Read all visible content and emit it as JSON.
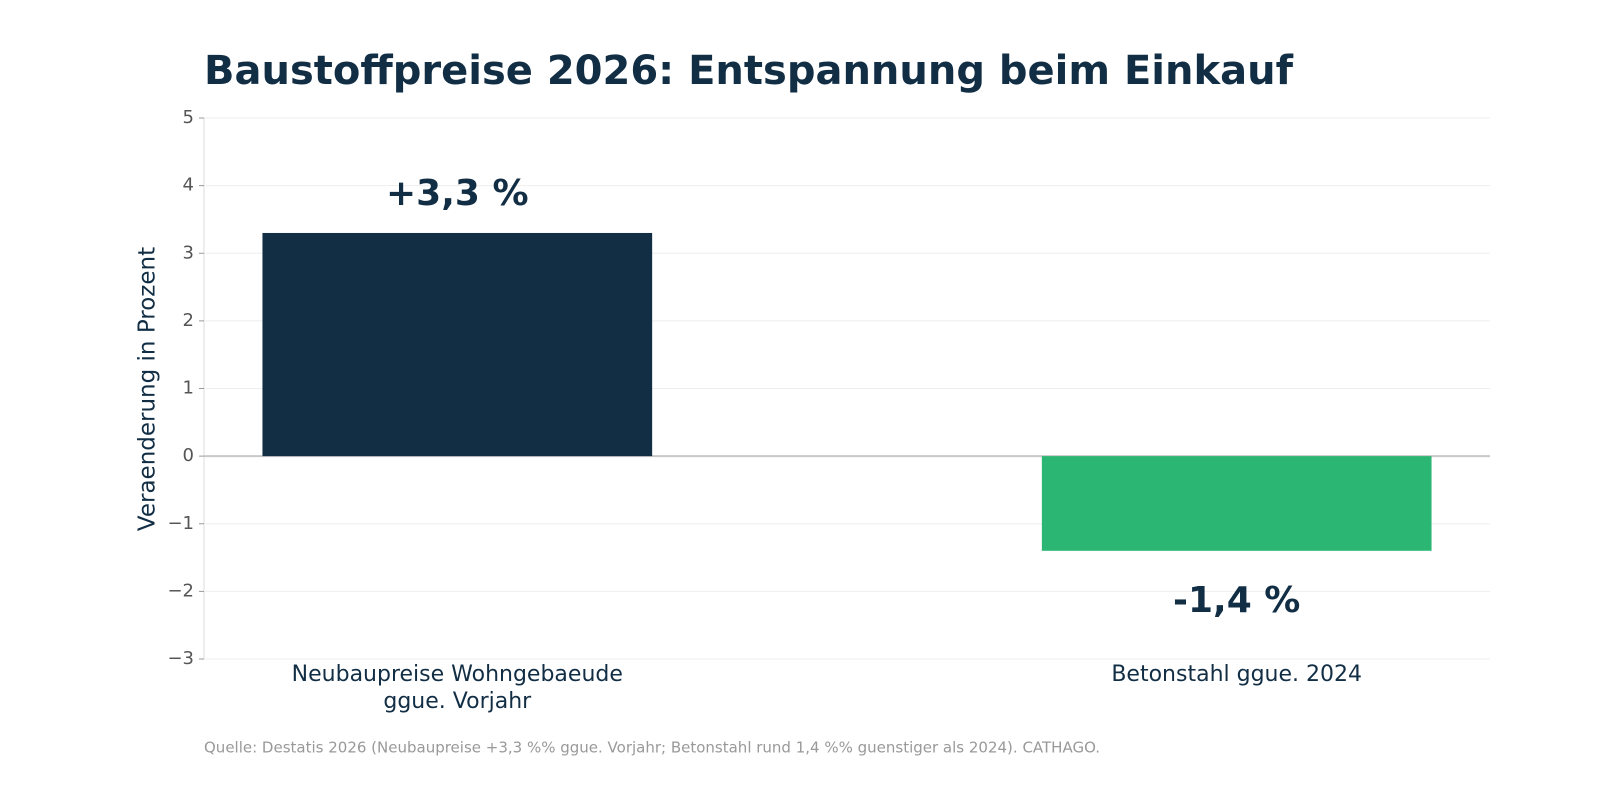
{
  "chart_data": {
    "type": "bar",
    "title": "Baustoffpreise 2026: Entspannung beim Einkauf",
    "y_label": "Veraenderung in Prozent",
    "categories": [
      "Neubaupreise Wohngebaeude\nggue. Vorjahr",
      "Betonstahl ggue. 2024"
    ],
    "values": [
      3.3,
      -1.4
    ],
    "value_labels": [
      "+3,3 %",
      "-1,4 %"
    ],
    "colors": [
      "#122e45",
      "#2bb673"
    ],
    "ylim": [
      -3,
      5
    ],
    "yticks": [
      {
        "value": -3,
        "label": "−3"
      },
      {
        "value": -2,
        "label": "−2"
      },
      {
        "value": -1,
        "label": "−1"
      },
      0,
      1,
      2,
      3,
      4,
      5
    ],
    "grid": true,
    "source": "Quelle: Destatis 2026 (Neubaupreise +3,3 %% ggue. Vorjahr; Betonstahl rund 1,4 %% guenstiger als 2024). CATHAGO."
  }
}
